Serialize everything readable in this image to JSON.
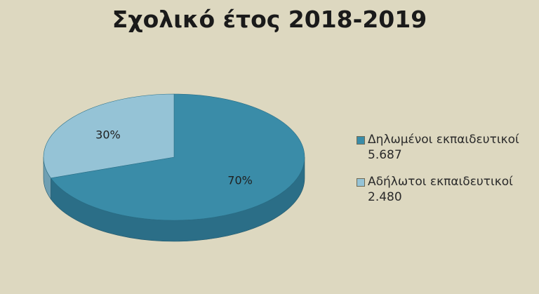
{
  "chart_data": {
    "type": "pie",
    "title": "Σχολικό έτος 2018-2019",
    "slices": [
      {
        "name": "Δηλωμένοι εκπαιδευτικοί",
        "value": 5687,
        "value_label": "5.687",
        "percent_label": "70%",
        "color": "#3a8ca8",
        "side_color": "#2b6e87"
      },
      {
        "name": "Αδήλωτοι εκπαιδευτικοί",
        "value": 2480,
        "value_label": "2.480",
        "percent_label": "30%",
        "color": "#95c3d6",
        "side_color": "#6f9fb2"
      }
    ],
    "legend_position": "right"
  }
}
